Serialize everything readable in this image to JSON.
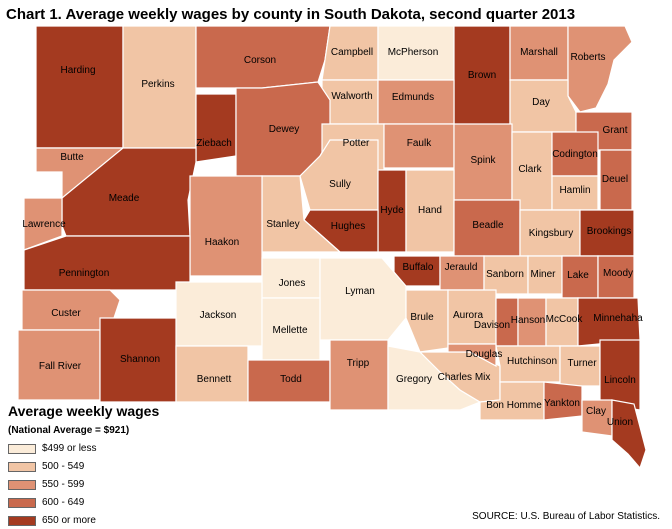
{
  "title": "Chart 1. Average weekly wages by county in South Dakota, second quarter 2013",
  "legend": {
    "title": "Average weekly wages",
    "note": "(National Average = $921)",
    "classes": [
      {
        "label": "$499 or less",
        "color": "#fbecd9"
      },
      {
        "label": "500 - 549",
        "color": "#f1c5a5"
      },
      {
        "label": "550 - 599",
        "color": "#df9274"
      },
      {
        "label": "600 - 649",
        "color": "#c9694d"
      },
      {
        "label": "650 or more",
        "color": "#a43a20"
      }
    ]
  },
  "counties": [
    {
      "name": "Harding",
      "class": 4
    },
    {
      "name": "Perkins",
      "class": 1
    },
    {
      "name": "Corson",
      "class": 3
    },
    {
      "name": "Campbell",
      "class": 1
    },
    {
      "name": "McPherson",
      "class": 0
    },
    {
      "name": "Brown",
      "class": 4
    },
    {
      "name": "Marshall",
      "class": 2
    },
    {
      "name": "Roberts",
      "class": 2
    },
    {
      "name": "Walworth",
      "class": 1
    },
    {
      "name": "Edmunds",
      "class": 2
    },
    {
      "name": "Day",
      "class": 1
    },
    {
      "name": "Butte",
      "class": 2
    },
    {
      "name": "Ziebach",
      "class": 4
    },
    {
      "name": "Dewey",
      "class": 3
    },
    {
      "name": "Potter",
      "class": 1
    },
    {
      "name": "Faulk",
      "class": 2
    },
    {
      "name": "Spink",
      "class": 2
    },
    {
      "name": "Clark",
      "class": 1
    },
    {
      "name": "Grant",
      "class": 3
    },
    {
      "name": "Codington",
      "class": 3
    },
    {
      "name": "Deuel",
      "class": 3
    },
    {
      "name": "Hamlin",
      "class": 1
    },
    {
      "name": "Meade",
      "class": 4
    },
    {
      "name": "Lawrence",
      "class": 2
    },
    {
      "name": "Sully",
      "class": 1
    },
    {
      "name": "Hyde",
      "class": 4
    },
    {
      "name": "Hand",
      "class": 1
    },
    {
      "name": "Hughes",
      "class": 4
    },
    {
      "name": "Stanley",
      "class": 1
    },
    {
      "name": "Haakon",
      "class": 2
    },
    {
      "name": "Beadle",
      "class": 3
    },
    {
      "name": "Kingsbury",
      "class": 1
    },
    {
      "name": "Brookings",
      "class": 4
    },
    {
      "name": "Pennington",
      "class": 4
    },
    {
      "name": "Jones",
      "class": 0
    },
    {
      "name": "Lyman",
      "class": 0
    },
    {
      "name": "Buffalo",
      "class": 4
    },
    {
      "name": "Jerauld",
      "class": 2
    },
    {
      "name": "Sanborn",
      "class": 1
    },
    {
      "name": "Miner",
      "class": 1
    },
    {
      "name": "Lake",
      "class": 3
    },
    {
      "name": "Moody",
      "class": 3
    },
    {
      "name": "Custer",
      "class": 2
    },
    {
      "name": "Jackson",
      "class": 0
    },
    {
      "name": "Mellette",
      "class": 0
    },
    {
      "name": "Brule",
      "class": 1
    },
    {
      "name": "Aurora",
      "class": 1
    },
    {
      "name": "Davison",
      "class": 3
    },
    {
      "name": "Hanson",
      "class": 2
    },
    {
      "name": "McCook",
      "class": 1
    },
    {
      "name": "Minnehaha",
      "class": 4
    },
    {
      "name": "Fall River",
      "class": 2
    },
    {
      "name": "Shannon",
      "class": 4
    },
    {
      "name": "Bennett",
      "class": 1
    },
    {
      "name": "Todd",
      "class": 3
    },
    {
      "name": "Tripp",
      "class": 2
    },
    {
      "name": "Gregory",
      "class": 0
    },
    {
      "name": "Charles Mix",
      "class": 1
    },
    {
      "name": "Douglas",
      "class": 2
    },
    {
      "name": "Hutchinson",
      "class": 1
    },
    {
      "name": "Turner",
      "class": 1
    },
    {
      "name": "Lincoln",
      "class": 4
    },
    {
      "name": "Bon Homme",
      "class": 1
    },
    {
      "name": "Yankton",
      "class": 3
    },
    {
      "name": "Clay",
      "class": 2
    },
    {
      "name": "Union",
      "class": 4
    }
  ],
  "source": "SOURCE: U.S. Bureau of Labor Statistics."
}
